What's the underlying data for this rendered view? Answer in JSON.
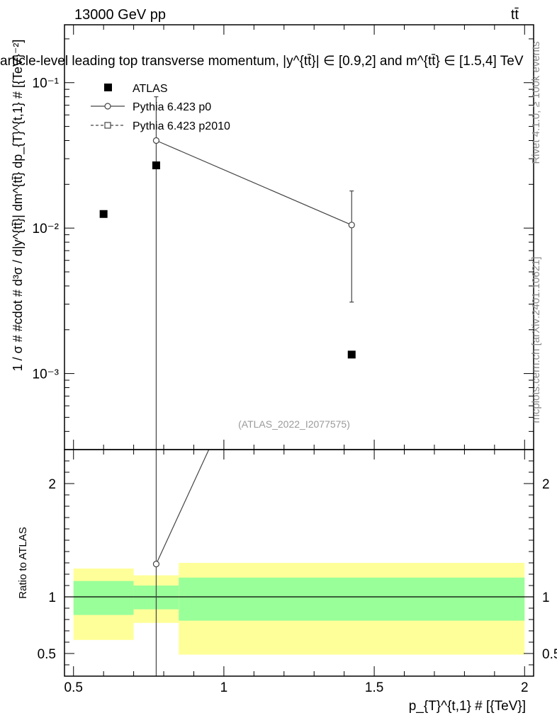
{
  "header": {
    "left_label": "13000 GeV pp",
    "right_label": "tt̄"
  },
  "main": {
    "title": "article-level leading top transverse momentum, |y^{tt̄}| ∈ [0.9,2] and m^{tt̄} ∈ [1.5,4] TeV",
    "watermark": "(ATLAS_2022_I2077575)",
    "ylabel": "1 / σ # #cdot # d³σ / d|y^{tt̄}| dm^{tt̄} dp_{T}^{t,1} # [{TeV}⁻²]"
  },
  "side_labels": {
    "rivet": "Rivet 4.1.0, ≥ 100k events",
    "mcplots": "mcplots.cern.ch [arXiv:2401.10621]"
  },
  "legend": {
    "items": [
      {
        "label": "ATLAS",
        "marker": "filled-square"
      },
      {
        "label": "Pythia 6.423 p0",
        "marker": "open-circle-solid"
      },
      {
        "label": "Pythia 6.423 p2010",
        "marker": "open-square-dashed"
      }
    ]
  },
  "ratio": {
    "ylabel": "Ratio to ATLAS"
  },
  "xaxis": {
    "label": "p_{T}^{t,1} # [{TeV}]",
    "ticks": [
      "0.5",
      "1",
      "1.5",
      "2"
    ]
  },
  "chart_data": [
    {
      "type": "scatter",
      "panel": "main",
      "yscale": "log",
      "xlim": [
        0.47,
        2.03
      ],
      "ylim": [
        0.0003,
        0.25
      ],
      "ytick_labels": [
        "10⁻³",
        "10⁻²",
        "10⁻¹"
      ],
      "series": [
        {
          "name": "ATLAS",
          "x": [
            0.6,
            0.775,
            1.425
          ],
          "y": [
            0.0125,
            0.027,
            0.00135
          ]
        },
        {
          "name": "Pythia 6.423 p0",
          "x": [
            0.775,
            1.425
          ],
          "y": [
            0.04,
            0.0105
          ],
          "yerr_low": [
            0.0003,
            0.0031
          ],
          "yerr_high": [
            0.08,
            0.018
          ]
        }
      ]
    },
    {
      "type": "area",
      "panel": "ratio",
      "xlim": [
        0.47,
        2.03
      ],
      "ylim": [
        0.3,
        2.3
      ],
      "ytick_labels": [
        "0.5",
        "1",
        "2"
      ],
      "bins": [
        [
          0.5,
          0.7
        ],
        [
          0.7,
          0.85
        ],
        [
          0.85,
          2.0
        ]
      ],
      "band_outer": [
        [
          0.62,
          1.25
        ],
        [
          0.77,
          1.19
        ],
        [
          0.49,
          1.3
        ]
      ],
      "band_inner": [
        [
          0.84,
          1.14
        ],
        [
          0.89,
          1.1
        ],
        [
          0.79,
          1.17
        ]
      ],
      "reference_line": 1,
      "series": [
        {
          "name": "Pythia 6.423 p0",
          "x": [
            0.775,
            0.95
          ],
          "y": [
            1.29,
            2.3
          ]
        }
      ]
    }
  ]
}
